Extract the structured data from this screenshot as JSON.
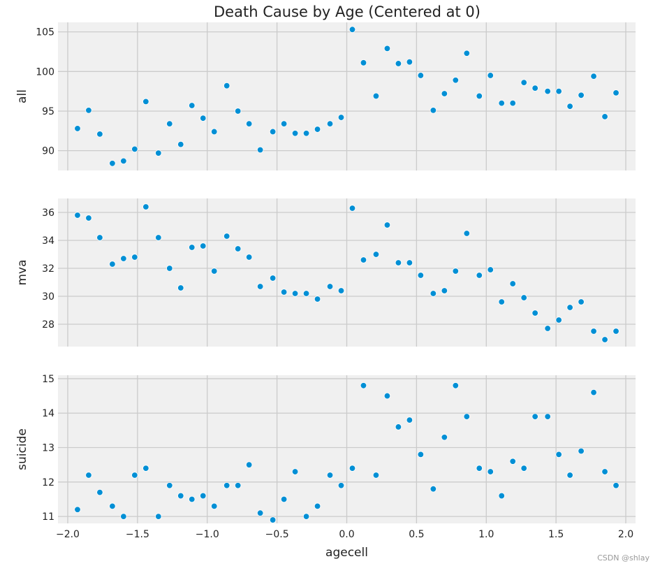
{
  "figure": {
    "title": "Death Cause by Age (Centered at 0)",
    "watermark": "CSDN @shlay"
  },
  "colors": {
    "point": "#008fd5",
    "point_edge": "#ffffff",
    "panel_bg": "#f0f0f0",
    "grid": "#cbcbcb"
  },
  "chart_data": [
    {
      "type": "scatter",
      "title": "Death Cause by Age (Centered at 0)",
      "xlabel": "",
      "ylabel": "all",
      "xlim": [
        -2.07,
        2.07
      ],
      "ylim": [
        87.5,
        106.2
      ],
      "xticks": [
        -2.0,
        -1.5,
        -1.0,
        -0.5,
        0.0,
        0.5,
        1.0,
        1.5,
        2.0
      ],
      "yticks": [
        90,
        95,
        100,
        105
      ],
      "grid": true,
      "x": [
        -1.93,
        -1.85,
        -1.77,
        -1.68,
        -1.6,
        -1.52,
        -1.44,
        -1.35,
        -1.27,
        -1.19,
        -1.11,
        -1.03,
        -0.95,
        -0.86,
        -0.78,
        -0.7,
        -0.62,
        -0.53,
        -0.45,
        -0.37,
        -0.29,
        -0.21,
        -0.12,
        -0.04,
        0.04,
        0.12,
        0.21,
        0.29,
        0.37,
        0.45,
        0.53,
        0.62,
        0.7,
        0.78,
        0.86,
        0.95,
        1.03,
        1.11,
        1.19,
        1.27,
        1.35,
        1.44,
        1.52,
        1.6,
        1.68,
        1.77,
        1.85,
        1.93
      ],
      "y": [
        92.8,
        95.1,
        92.1,
        88.4,
        88.7,
        90.2,
        96.2,
        89.7,
        93.4,
        90.8,
        95.7,
        94.1,
        92.4,
        98.2,
        95.0,
        93.4,
        90.1,
        92.4,
        93.4,
        92.2,
        92.2,
        92.7,
        93.4,
        94.2,
        105.3,
        101.1,
        96.9,
        102.9,
        101.0,
        101.2,
        99.5,
        95.1,
        97.2,
        98.9,
        102.3,
        96.9,
        99.5,
        96.0,
        96.0,
        98.6,
        97.9,
        97.5,
        97.5,
        95.6,
        97.0,
        99.4,
        94.3,
        97.3
      ]
    },
    {
      "type": "scatter",
      "xlabel": "",
      "ylabel": "mva",
      "xlim": [
        -2.07,
        2.07
      ],
      "ylim": [
        26.4,
        37.0
      ],
      "xticks": [
        -2.0,
        -1.5,
        -1.0,
        -0.5,
        0.0,
        0.5,
        1.0,
        1.5,
        2.0
      ],
      "yticks": [
        28,
        30,
        32,
        34,
        36
      ],
      "grid": true,
      "x": [
        -1.93,
        -1.85,
        -1.77,
        -1.68,
        -1.6,
        -1.52,
        -1.44,
        -1.35,
        -1.27,
        -1.19,
        -1.11,
        -1.03,
        -0.95,
        -0.86,
        -0.78,
        -0.7,
        -0.62,
        -0.53,
        -0.45,
        -0.37,
        -0.29,
        -0.21,
        -0.12,
        -0.04,
        0.04,
        0.12,
        0.21,
        0.29,
        0.37,
        0.45,
        0.53,
        0.62,
        0.7,
        0.78,
        0.86,
        0.95,
        1.03,
        1.11,
        1.19,
        1.27,
        1.35,
        1.44,
        1.52,
        1.6,
        1.68,
        1.77,
        1.85,
        1.93
      ],
      "y": [
        35.8,
        35.6,
        34.2,
        32.3,
        32.7,
        32.8,
        36.4,
        34.2,
        32.0,
        30.6,
        33.5,
        33.6,
        31.8,
        34.3,
        33.4,
        32.8,
        30.7,
        31.3,
        30.3,
        30.2,
        30.2,
        29.8,
        30.7,
        30.4,
        36.3,
        32.6,
        33.0,
        35.1,
        32.4,
        32.4,
        31.5,
        30.2,
        30.4,
        31.8,
        34.5,
        31.5,
        31.9,
        29.6,
        30.9,
        29.9,
        28.8,
        27.7,
        28.3,
        29.2,
        29.6,
        27.5,
        26.9,
        27.5
      ]
    },
    {
      "type": "scatter",
      "xlabel": "agecell",
      "ylabel": "suicide",
      "xlim": [
        -2.07,
        2.07
      ],
      "ylim": [
        10.8,
        15.1
      ],
      "xticks": [
        -2.0,
        -1.5,
        -1.0,
        -0.5,
        0.0,
        0.5,
        1.0,
        1.5,
        2.0
      ],
      "xticklabels": [
        "−2.0",
        "−1.5",
        "−1.0",
        "−0.5",
        "0.0",
        "0.5",
        "1.0",
        "1.5",
        "2.0"
      ],
      "yticks": [
        11,
        12,
        13,
        14,
        15
      ],
      "grid": true,
      "x": [
        -1.93,
        -1.85,
        -1.77,
        -1.68,
        -1.6,
        -1.52,
        -1.44,
        -1.35,
        -1.27,
        -1.19,
        -1.11,
        -1.03,
        -0.95,
        -0.86,
        -0.78,
        -0.7,
        -0.62,
        -0.53,
        -0.45,
        -0.37,
        -0.29,
        -0.21,
        -0.12,
        -0.04,
        0.04,
        0.12,
        0.21,
        0.29,
        0.37,
        0.45,
        0.53,
        0.62,
        0.7,
        0.78,
        0.86,
        0.95,
        1.03,
        1.11,
        1.19,
        1.27,
        1.35,
        1.44,
        1.52,
        1.6,
        1.68,
        1.77,
        1.85,
        1.93
      ],
      "y": [
        11.2,
        12.2,
        11.7,
        11.3,
        11.0,
        12.2,
        12.4,
        11.0,
        11.9,
        11.6,
        11.5,
        11.6,
        11.3,
        11.9,
        11.9,
        12.5,
        11.1,
        10.9,
        11.5,
        12.3,
        11.0,
        11.3,
        12.2,
        11.9,
        12.4,
        14.8,
        12.2,
        14.5,
        13.6,
        13.8,
        12.8,
        11.8,
        13.3,
        14.8,
        13.9,
        12.4,
        12.3,
        11.6,
        12.6,
        12.4,
        13.9,
        13.9,
        12.8,
        12.2,
        12.9,
        14.6,
        12.3,
        11.9
      ]
    }
  ]
}
